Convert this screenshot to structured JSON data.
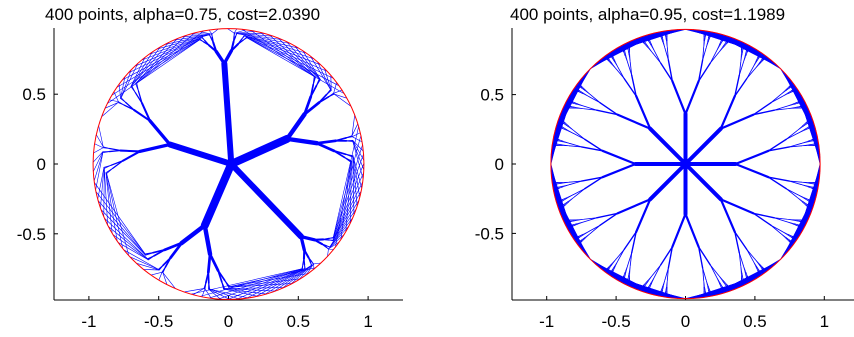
{
  "chart_data": [
    {
      "type": "scatter",
      "title": "400 points, alpha=0.75, cost=2.0390",
      "xlabel": "",
      "ylabel": "",
      "xlim": [
        -1.25,
        1.25
      ],
      "ylim": [
        -0.97,
        0.97
      ],
      "xticks": [
        -1,
        -0.5,
        0,
        0.5,
        1
      ],
      "xtick_labels": [
        "-1",
        "-0.5",
        "0",
        "0.5",
        "1"
      ],
      "yticks": [
        0.5,
        0,
        -0.5
      ],
      "ytick_labels": [
        "0.5",
        "0",
        "-0.5"
      ],
      "grid": false,
      "series": [
        {
          "role": "boundary",
          "shape": "circle",
          "center": [
            0,
            0
          ],
          "radius": 0.97,
          "color": "#ff0000"
        },
        {
          "role": "tree",
          "color": "#0000ff",
          "center": [
            0.02,
            0.0
          ],
          "hubs": [
            {
              "x": -0.42,
              "y": 0.14,
              "weight": 6
            },
            {
              "x": 0.42,
              "y": 0.18,
              "weight": 8
            },
            {
              "x": -0.17,
              "y": -0.44,
              "weight": 8
            },
            {
              "x": -0.03,
              "y": 0.72,
              "weight": 6
            },
            {
              "x": 0.52,
              "y": -0.52,
              "weight": 6
            }
          ]
        }
      ]
    },
    {
      "type": "scatter",
      "title": "400 points, alpha=0.95, cost=1.1989",
      "xlabel": "",
      "ylabel": "",
      "xlim": [
        -1.25,
        1.25
      ],
      "ylim": [
        -0.97,
        0.97
      ],
      "xticks": [
        -1,
        -0.5,
        0,
        0.5,
        1
      ],
      "xtick_labels": [
        "-1",
        "-0.5",
        "0",
        "0.5",
        "1"
      ],
      "yticks": [
        0.5,
        0,
        -0.5
      ],
      "ytick_labels": [
        "0.5",
        "0",
        "-0.5"
      ],
      "grid": false,
      "series": [
        {
          "role": "boundary",
          "shape": "circle",
          "center": [
            0,
            0
          ],
          "radius": 0.97,
          "color": "#ff0000"
        },
        {
          "role": "tree",
          "color": "#0000ff",
          "center": [
            0.0,
            0.0
          ],
          "branches": 8
        }
      ]
    }
  ]
}
